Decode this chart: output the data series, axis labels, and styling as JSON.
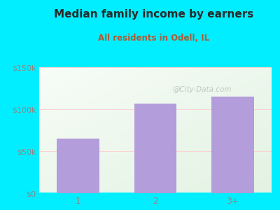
{
  "title": "Median family income by earners",
  "subtitle": "All residents in Odell, IL",
  "categories": [
    "1",
    "2",
    "3+"
  ],
  "values": [
    65000,
    107000,
    115000
  ],
  "bar_color": "#b39ddb",
  "background_color": "#00eeff",
  "title_color": "#2a2a2a",
  "subtitle_color": "#b05a30",
  "tick_label_color": "#888888",
  "ylim": [
    0,
    150000
  ],
  "yticks": [
    0,
    50000,
    100000,
    150000
  ],
  "ytick_labels": [
    "$0",
    "$50k",
    "$100k",
    "$150k"
  ],
  "watermark": "@City-Data.com",
  "watermark_color": "#aaaaaa"
}
